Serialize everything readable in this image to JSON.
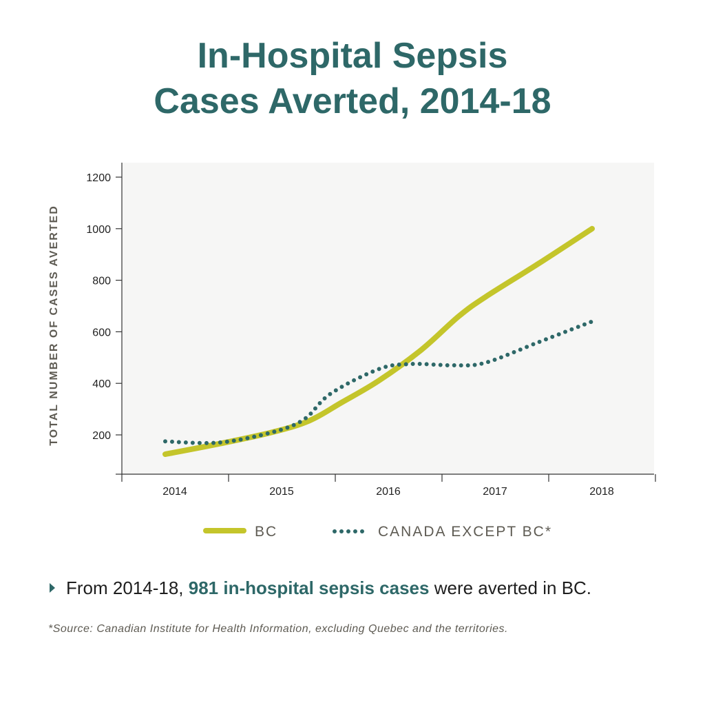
{
  "title": {
    "line1": "In-Hospital Sepsis",
    "line2": "Cases Averted, 2014-18"
  },
  "chart_data": {
    "type": "line",
    "title": "In-Hospital Sepsis Cases Averted, 2014-18",
    "xlabel": "",
    "ylabel": "TOTAL NUMBER OF CASES AVERTED",
    "categories": [
      "2014",
      "2015",
      "2016",
      "2017",
      "2018"
    ],
    "yticks": [
      200,
      400,
      600,
      800,
      1000,
      1200
    ],
    "ylim": [
      50,
      1250
    ],
    "grid": false,
    "legend_position": "bottom",
    "series": [
      {
        "name": "BC",
        "style": "solid",
        "color": "#c4c52b",
        "x": [
          2014,
          2014.5,
          2015,
          2015.35,
          2015.65,
          2016,
          2016.4,
          2016.75,
          2017,
          2017.5,
          2018
        ],
        "values": [
          125,
          165,
          210,
          255,
          325,
          410,
          530,
          660,
          735,
          865,
          1000
        ]
      },
      {
        "name": "CANADA EXCEPT BC*",
        "style": "dotted",
        "color": "#2e6868",
        "x": [
          2014,
          2014.5,
          2015,
          2015.3,
          2015.55,
          2016,
          2016.3,
          2016.7,
          2017,
          2017.5,
          2018
        ],
        "values": [
          175,
          170,
          210,
          260,
          360,
          455,
          475,
          470,
          480,
          560,
          640
        ]
      }
    ]
  },
  "legend": {
    "items": [
      {
        "label": "BC"
      },
      {
        "label": "CANADA EXCEPT BC*"
      }
    ]
  },
  "callout": {
    "prefix": "From 2014-18, ",
    "highlight": "981 in-hospital sepsis cases",
    "suffix": " were averted in BC."
  },
  "footnote": "*Source: Canadian Institute for Health Information, excluding Quebec and the territories.",
  "colors": {
    "teal": "#2e6868",
    "chartreuse": "#c4c52b",
    "plot_bg": "#f6f6f5"
  }
}
